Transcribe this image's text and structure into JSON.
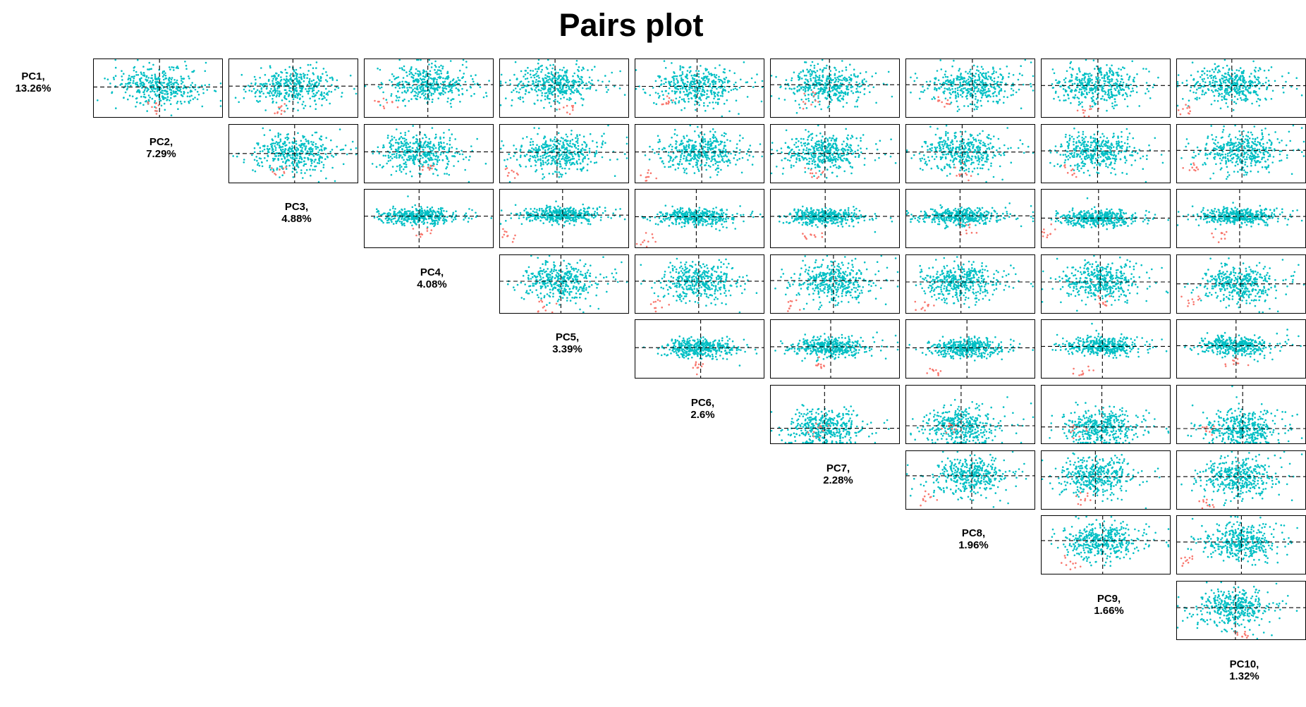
{
  "title": "Pairs plot",
  "colors": {
    "main_points": "#00BFC4",
    "outlier_points": "#F8766D",
    "frame": "#000000",
    "reference_lines": "#000000"
  },
  "chart_data": {
    "type": "scatter",
    "layout": "upper-triangle pairs matrix",
    "reference_lines": "dashed horizontal and vertical lines at 0",
    "axes_shown": false,
    "grid": false,
    "legend": "none",
    "components": [
      {
        "name": "PC1",
        "label_line1": "PC1,",
        "label_line2": "13.26%",
        "variance_pct": 13.26
      },
      {
        "name": "PC2",
        "label_line1": "PC2,",
        "label_line2": "7.29%",
        "variance_pct": 7.29
      },
      {
        "name": "PC3",
        "label_line1": "PC3,",
        "label_line2": "4.88%",
        "variance_pct": 4.88
      },
      {
        "name": "PC4",
        "label_line1": "PC4,",
        "label_line2": "4.08%",
        "variance_pct": 4.08
      },
      {
        "name": "PC5",
        "label_line1": "PC5,",
        "label_line2": "3.39%",
        "variance_pct": 3.39
      },
      {
        "name": "PC6",
        "label_line1": "PC6,",
        "label_line2": "2.6%",
        "variance_pct": 2.6
      },
      {
        "name": "PC7",
        "label_line1": "PC7,",
        "label_line2": "2.28%",
        "variance_pct": 2.28
      },
      {
        "name": "PC8",
        "label_line1": "PC8,",
        "label_line2": "1.96%",
        "variance_pct": 1.96
      },
      {
        "name": "PC9",
        "label_line1": "PC9,",
        "label_line2": "1.66%",
        "variance_pct": 1.66
      },
      {
        "name": "PC10",
        "label_line1": "PC10,",
        "label_line2": "1.32%",
        "variance_pct": 1.32
      }
    ],
    "points_per_panel_approx": 400,
    "outlier_points_per_panel_approx": 10,
    "points_note": "individual point coordinates are not labeled; points are rendered as a representative cloud"
  }
}
